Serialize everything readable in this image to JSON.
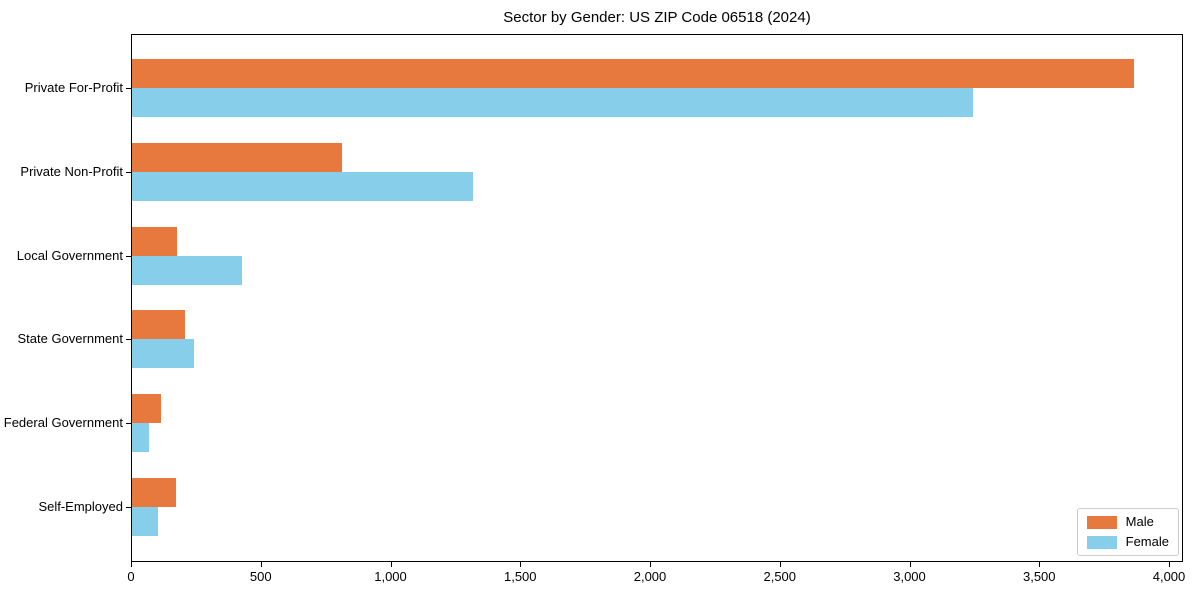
{
  "chart_data": {
    "type": "bar",
    "orientation": "horizontal",
    "title": "Sector by Gender: US ZIP Code 06518 (2024)",
    "categories": [
      "Private For-Profit",
      "Private Non-Profit",
      "Local Government",
      "State Government",
      "Federal Government",
      "Self-Employed"
    ],
    "series": [
      {
        "name": "Male",
        "color": "#e8793e",
        "values": [
          3860,
          810,
          175,
          205,
          110,
          170
        ]
      },
      {
        "name": "Female",
        "color": "#87ceeb",
        "values": [
          3240,
          1315,
          425,
          240,
          65,
          100
        ]
      }
    ],
    "xlabel": "",
    "ylabel": "",
    "xlim": [
      0,
      4054
    ],
    "x_ticks": [
      0,
      500,
      1000,
      1500,
      2000,
      2500,
      3000,
      3500,
      4000
    ],
    "x_tick_labels": [
      "0",
      "500",
      "1,000",
      "1,500",
      "2,000",
      "2,500",
      "3,000",
      "3,500",
      "4,000"
    ],
    "grid": false,
    "legend_position": "lower right"
  },
  "colors": {
    "background": "#ffffff",
    "spine": "#000000",
    "text": "#000000",
    "legend_border": "#cccccc"
  }
}
